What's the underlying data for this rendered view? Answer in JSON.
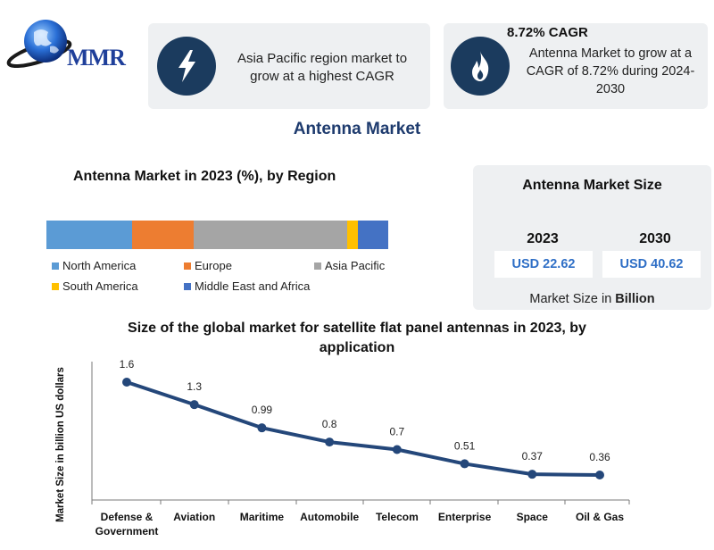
{
  "logo": {
    "text": "MMR"
  },
  "card_growth": {
    "icon": "lightning-icon",
    "text": "Asia Pacific region market to grow at a highest CAGR"
  },
  "card_cagr": {
    "icon": "flame-icon",
    "title": "8.72% CAGR",
    "text": "Antenna Market to grow at a CAGR of 8.72% during 2024-2030"
  },
  "main_title": "Antenna Market",
  "region_chart": {
    "title": "Antenna Market in 2023 (%), by Region",
    "segments": [
      {
        "name": "North America",
        "share": 25,
        "color": "#5b9bd5"
      },
      {
        "name": "Europe",
        "share": 18,
        "color": "#ed7d31"
      },
      {
        "name": "Asia Pacific",
        "share": 45,
        "color": "#a5a5a5"
      },
      {
        "name": "South America",
        "share": 3,
        "color": "#ffc000"
      },
      {
        "name": "Middle East and Africa",
        "share": 9,
        "color": "#4472c4"
      }
    ]
  },
  "market_size": {
    "title": "Antenna Market Size",
    "years": [
      {
        "year": "2023",
        "value": "USD 22.62"
      },
      {
        "year": "2030",
        "value": "USD 40.62"
      }
    ],
    "foot_prefix": "Market Size in ",
    "foot_unit": "Billion"
  },
  "chart_data": {
    "type": "line",
    "title": "Size of the global market for satellite flat panel antennas in 2023, by application",
    "ylabel": "Market Size in billion US dollars",
    "xlabel": "",
    "categories": [
      "Defense & Government",
      "Aviation",
      "Maritime",
      "Automobile",
      "Telecom",
      "Enterprise",
      "Space",
      "Oil & Gas"
    ],
    "values": [
      1.6,
      1.3,
      0.99,
      0.8,
      0.7,
      0.51,
      0.37,
      0.36
    ],
    "line_color": "#24477a",
    "ylim": [
      0.2,
      1.8
    ],
    "grid": false
  }
}
